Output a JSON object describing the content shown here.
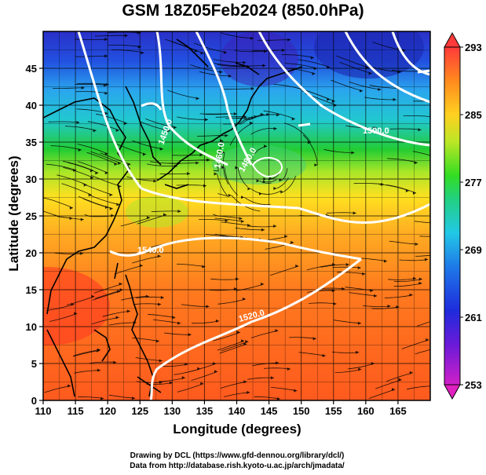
{
  "title": "GSM 18Z05Feb2024 (850.0hPa)",
  "axes": {
    "xlabel": "Longitude (degrees)",
    "ylabel": "Latitude  (degrees)",
    "x_ticks": [
      "110",
      "115",
      "120",
      "125",
      "130",
      "135",
      "140",
      "145",
      "150",
      "155",
      "160",
      "165"
    ],
    "y_ticks": [
      "0",
      "5",
      "10",
      "15",
      "20",
      "25",
      "30",
      "35",
      "40",
      "45"
    ]
  },
  "map": {
    "lon_range": [
      110,
      170
    ],
    "lat_range": [
      0,
      50
    ],
    "grid": true,
    "contour_labels": [
      "1450.0",
      "1460.0",
      "1480.0",
      "1500.0",
      "1520.0",
      "1540.0"
    ],
    "colors": {
      "warm": "#ff5a1e",
      "mid": "#ffd700",
      "green": "#22cc22",
      "cyan": "#22c8e6",
      "cold": "#1e3cdc",
      "coastline": "#000000",
      "contour": "#ffffff"
    }
  },
  "colorbar": {
    "ticks": [
      "293",
      "285",
      "277",
      "269",
      "261",
      "253"
    ],
    "min": 253,
    "max": 293,
    "extend": "both"
  },
  "credits": {
    "line1": "Drawing by DCL (https://www.gfd-dennou.org/library/dcl/)",
    "line2": "Data from http://database.rish.kyoto-u.ac.jp/arch/jmadata/"
  }
}
